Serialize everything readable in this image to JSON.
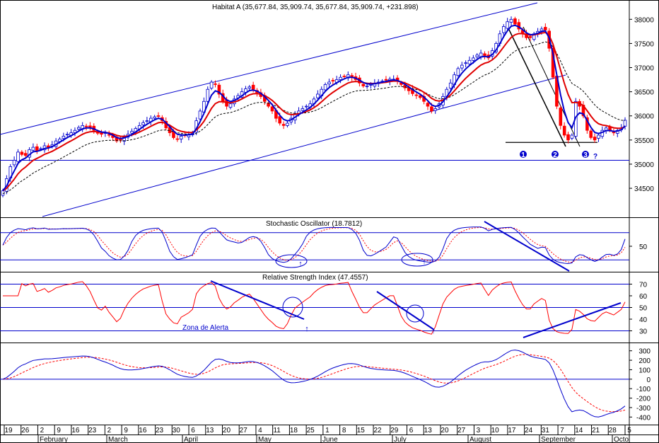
{
  "colors": {
    "up": "#0000cc",
    "down": "#ff0000",
    "ma_fast": "#0000cc",
    "ma_mid": "#e00000",
    "ma_slow": "#000000",
    "lines": "#0000cc",
    "axis": "#000000",
    "background": "#ffffff"
  },
  "chart_data": [
    {
      "type": "candlestick",
      "title": "Habitat A (35,677.84, 35,909.74, 35,677.84, 35,909.74, +231.898)",
      "ylim": [
        33900,
        38400
      ],
      "yticks": [
        34500,
        35000,
        35500,
        36000,
        36500,
        37000,
        37500,
        38000
      ],
      "x_count": 165,
      "closes": [
        34450,
        34700,
        34950,
        35080,
        35250,
        35200,
        35180,
        35300,
        35350,
        35280,
        35320,
        35380,
        35350,
        35400,
        35480,
        35520,
        35580,
        35620,
        35650,
        35700,
        35760,
        35800,
        35780,
        35750,
        35700,
        35640,
        35620,
        35650,
        35600,
        35550,
        35480,
        35500,
        35560,
        35620,
        35680,
        35740,
        35800,
        35860,
        35900,
        35950,
        35980,
        36000,
        35900,
        35750,
        35650,
        35550,
        35520,
        35580,
        35600,
        35620,
        35650,
        35900,
        36100,
        36300,
        36550,
        36700,
        36650,
        36450,
        36300,
        36200,
        36250,
        36350,
        36420,
        36500,
        36560,
        36600,
        36550,
        36480,
        36400,
        36300,
        36200,
        36100,
        35950,
        35850,
        35800,
        35850,
        35950,
        36050,
        36100,
        36150,
        36200,
        36250,
        36350,
        36450,
        36550,
        36650,
        36700,
        36720,
        36750,
        36800,
        36820,
        36850,
        36800,
        36750,
        36680,
        36620,
        36620,
        36650,
        36680,
        36700,
        36720,
        36740,
        36760,
        36760,
        36720,
        36650,
        36580,
        36520,
        36460,
        36420,
        36380,
        36300,
        36200,
        36100,
        36150,
        36250,
        36400,
        36550,
        36680,
        36850,
        36980,
        37050,
        37100,
        37150,
        37200,
        37260,
        37300,
        37250,
        37200,
        37350,
        37500,
        37700,
        37850,
        37950,
        38000,
        37900,
        37800,
        37700,
        37620,
        37620,
        37700,
        37750,
        37800,
        37780,
        37400,
        36800,
        36200,
        35800,
        35600,
        35500,
        35600,
        36300,
        36200,
        36000,
        35700,
        35550,
        35500,
        35600,
        35700,
        35750,
        35700,
        35650,
        35700,
        35750,
        35909.74
      ],
      "annotations": [
        "1",
        "2",
        "3",
        "?"
      ],
      "support_level": 35450,
      "horizontal_level": 35080,
      "moving_averages": [
        "fast",
        "mid",
        "slow"
      ]
    },
    {
      "type": "line",
      "title": "Stochastic Oscillator (18.7812)",
      "yticks": [
        50
      ],
      "ylim": [
        0,
        100
      ],
      "levels": [
        80,
        20
      ],
      "series_count": 2
    },
    {
      "type": "line",
      "title": "Relative Strength Index (47.4557)",
      "yticks": [
        70,
        60,
        50,
        40,
        30
      ],
      "ylim": [
        20,
        80
      ],
      "levels": [
        70,
        50,
        30
      ],
      "annotation": "Zona de Alerta",
      "series_count": 1
    },
    {
      "type": "line",
      "title": "",
      "yticks": [
        300,
        200,
        100,
        0,
        -100,
        -200,
        -300,
        -400
      ],
      "ylim": [
        -450,
        350
      ],
      "levels": [
        0
      ],
      "series_count": 2
    }
  ],
  "x_axis": {
    "day_ticks": [
      "19",
      "26",
      "2",
      "9",
      "16",
      "23",
      "2",
      "9",
      "16",
      "23",
      "30",
      "6",
      "13",
      "20",
      "27",
      "4",
      "11",
      "18",
      "25",
      "1",
      "8",
      "15",
      "22",
      "29",
      "6",
      "13",
      "20",
      "27",
      "3",
      "10",
      "17",
      "24",
      "31",
      "7",
      "14",
      "21",
      "28",
      "5"
    ],
    "months": [
      "February",
      "March",
      "April",
      "May",
      "June",
      "July",
      "August",
      "September",
      "Octo"
    ]
  }
}
